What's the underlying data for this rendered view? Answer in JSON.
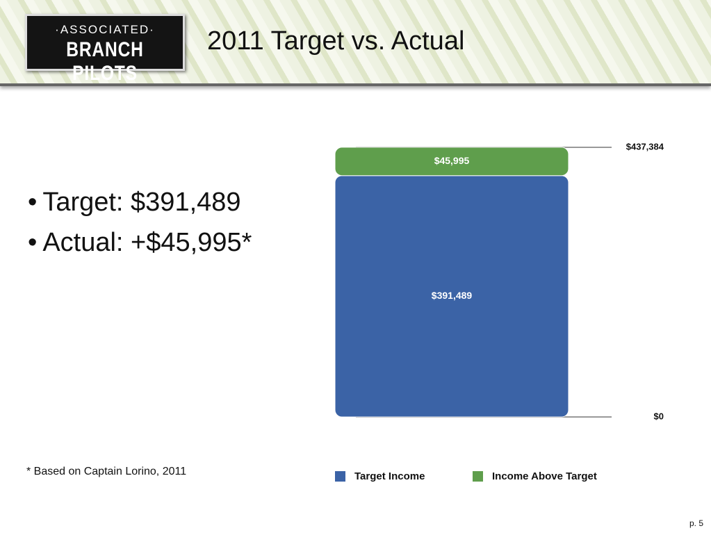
{
  "header": {
    "logo_top": "·ASSOCIATED·",
    "logo_bottom": "BRANCH PILOTS",
    "title": "2011 Target vs. Actual"
  },
  "bullets": [
    "Target:  $391,489",
    "Actual: +$45,995*"
  ],
  "footnote": "* Based on Captain Lorino, 2011",
  "page_number": "p. 5",
  "chart_data": {
    "type": "bar",
    "stacked": true,
    "categories": [
      null
    ],
    "series": [
      {
        "name": "Target Income",
        "color": "#3b63a6",
        "values": [
          391489
        ],
        "value_labels": [
          "$391,489"
        ]
      },
      {
        "name": "Income Above Target",
        "color": "#5f9e4c",
        "values": [
          45995
        ],
        "value_labels": [
          "$45,995"
        ]
      }
    ],
    "ylim": [
      0,
      437384
    ],
    "yticks": [
      {
        "value": 0,
        "label": "$0"
      },
      {
        "value": 437384,
        "label": "$437,384"
      }
    ],
    "legend": "bottom"
  }
}
